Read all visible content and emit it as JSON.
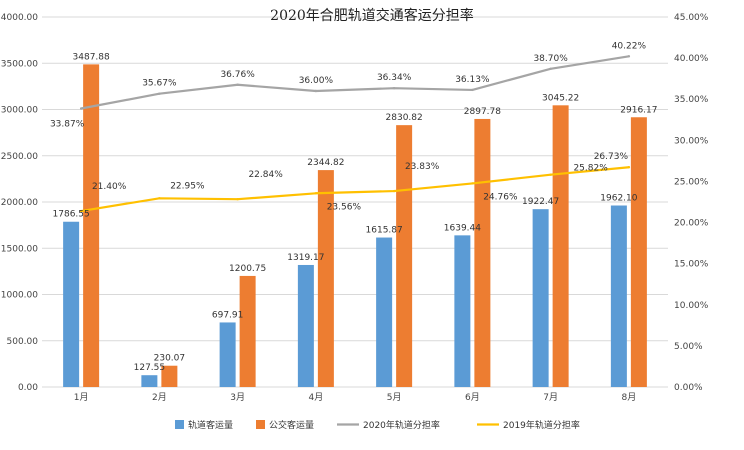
{
  "chart_data": {
    "type": "bar",
    "title": "2020年合肥轨道交通客运分担率",
    "categories": [
      "1月",
      "2月",
      "3月",
      "4月",
      "5月",
      "6月",
      "7月",
      "8月"
    ],
    "series": [
      {
        "name": "轨道客运量",
        "kind": "bar",
        "axis": "left",
        "color": "#5B9BD5",
        "values": [
          1786.55,
          127.55,
          697.91,
          1319.17,
          1615.87,
          1639.44,
          1922.47,
          1962.1
        ],
        "labels": [
          "1786.55",
          "127.55",
          "697.91",
          "1319.17",
          "1615.87",
          "1639.44",
          "1922.47",
          "1962.10"
        ]
      },
      {
        "name": "公交客运量",
        "kind": "bar",
        "axis": "left",
        "color": "#ED7D31",
        "values": [
          3487.88,
          230.07,
          1200.75,
          2344.82,
          2830.82,
          2897.78,
          3045.22,
          2916.17
        ],
        "labels": [
          "3487.88",
          "230.07",
          "1200.75",
          "2344.82",
          "2830.82",
          "2897.78",
          "3045.22",
          "2916.17"
        ]
      },
      {
        "name": "2020年轨道分担率",
        "kind": "line",
        "axis": "right",
        "color": "#A5A5A5",
        "values": [
          33.87,
          35.67,
          36.76,
          36.0,
          36.34,
          36.13,
          38.7,
          40.22
        ],
        "labels": [
          "33.87%",
          "35.67%",
          "36.76%",
          "36.00%",
          "36.34%",
          "36.13%",
          "38.70%",
          "40.22%"
        ]
      },
      {
        "name": "2019年轨道分担率",
        "kind": "line",
        "axis": "right",
        "color": "#FFC000",
        "values": [
          21.4,
          22.95,
          22.84,
          23.56,
          23.83,
          24.76,
          25.82,
          26.73
        ],
        "labels": [
          "21.40%",
          "22.95%",
          "22.84%",
          "23.56%",
          "23.83%",
          "24.76%",
          "25.82%",
          "26.73%"
        ]
      }
    ],
    "left_axis": {
      "ylim": [
        0,
        4000
      ],
      "ticks": [
        0,
        500,
        1000,
        1500,
        2000,
        2500,
        3000,
        3500,
        4000
      ],
      "tick_labels": [
        "0.00",
        "500.00",
        "1000.00",
        "1500.00",
        "2000.00",
        "2500.00",
        "3000.00",
        "3500.00",
        "4000.00"
      ]
    },
    "right_axis": {
      "ylim": [
        0,
        45
      ],
      "ticks": [
        0,
        5,
        10,
        15,
        20,
        25,
        30,
        35,
        40,
        45
      ],
      "tick_labels": [
        "0.00%",
        "5.00%",
        "10.00%",
        "15.00%",
        "20.00%",
        "25.00%",
        "30.00%",
        "35.00%",
        "40.00%",
        "45.00%"
      ]
    },
    "grid": true,
    "legend_position": "bottom"
  }
}
